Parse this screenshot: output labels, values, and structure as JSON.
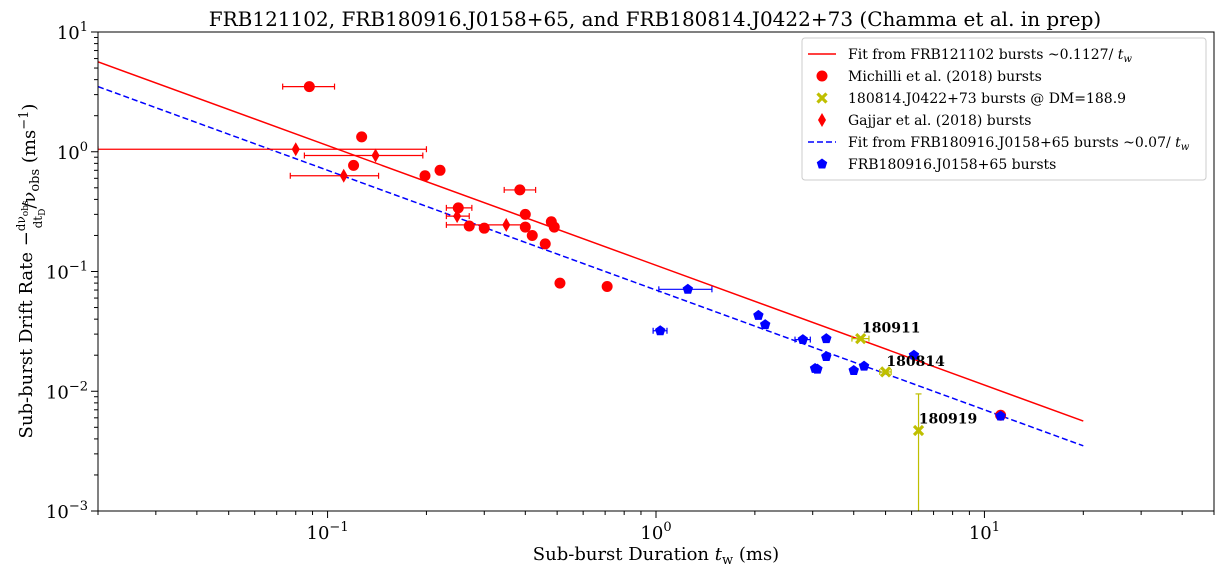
{
  "chart_data": {
    "type": "scatter",
    "title": "FRB121102, FRB180916.J0158+65, and FRB180814.J0422+73 (Chamma et al. in prep)",
    "xlabel": "Sub-burst Duration t_w (ms)",
    "ylabel": "Sub-burst Drift Rate −(dν_obs/dt_D)/ν_obs (ms⁻¹)",
    "xscale": "log",
    "yscale": "log",
    "xlim": [
      0.02,
      50
    ],
    "ylim": [
      0.001,
      10
    ],
    "grid": false,
    "legend_position": "top-right",
    "x_ticks": [
      {
        "value": 0.1,
        "base": "10",
        "exp": "−1"
      },
      {
        "value": 1,
        "base": "10",
        "exp": "0"
      },
      {
        "value": 10,
        "base": "10",
        "exp": "1"
      }
    ],
    "y_ticks": [
      {
        "value": 0.001,
        "base": "10",
        "exp": "−3"
      },
      {
        "value": 0.01,
        "base": "10",
        "exp": "−2"
      },
      {
        "value": 0.1,
        "base": "10",
        "exp": "−1"
      },
      {
        "value": 1,
        "base": "10",
        "exp": "0"
      },
      {
        "value": 10,
        "base": "10",
        "exp": "1"
      }
    ],
    "series": [
      {
        "name": "Fit from FRB121102 bursts ~0.1127/ t_w",
        "kind": "line",
        "color": "#ff0000",
        "dash": "solid",
        "x": [
          0.02,
          20
        ],
        "y": [
          5.635,
          0.005635
        ]
      },
      {
        "name": "Michilli et al. (2018) bursts",
        "kind": "points",
        "marker": "circle",
        "color": "#ff0000",
        "points": [
          {
            "x": 0.088,
            "y": 3.5,
            "xerr": [
              0.073,
              0.105
            ]
          },
          {
            "x": 0.127,
            "y": 1.33
          },
          {
            "x": 0.12,
            "y": 0.77
          },
          {
            "x": 0.198,
            "y": 0.63
          },
          {
            "x": 0.22,
            "y": 0.7
          },
          {
            "x": 0.25,
            "y": 0.34,
            "xerr": [
              0.23,
              0.275
            ]
          },
          {
            "x": 0.27,
            "y": 0.24
          },
          {
            "x": 0.3,
            "y": 0.23
          },
          {
            "x": 0.385,
            "y": 0.48,
            "xerr": [
              0.345,
              0.43
            ]
          },
          {
            "x": 0.4,
            "y": 0.3
          },
          {
            "x": 0.4,
            "y": 0.235
          },
          {
            "x": 0.42,
            "y": 0.2
          },
          {
            "x": 0.46,
            "y": 0.17
          },
          {
            "x": 0.48,
            "y": 0.26
          },
          {
            "x": 0.49,
            "y": 0.235
          },
          {
            "x": 0.51,
            "y": 0.08
          },
          {
            "x": 0.71,
            "y": 0.075
          },
          {
            "x": 11.2,
            "y": 0.0063
          }
        ]
      },
      {
        "name": "180814.J0422+73 bursts @ DM=188.9",
        "kind": "points",
        "marker": "x",
        "color": "#bfbf00",
        "points": [
          {
            "x": 4.2,
            "y": 0.0275,
            "xerr": [
              3.95,
              4.45
            ]
          },
          {
            "x": 5.0,
            "y": 0.0145,
            "xerr": [
              4.8,
              5.2
            ]
          },
          {
            "x": 6.3,
            "y": 0.0047,
            "yerr": [
              0.0005,
              0.0095
            ]
          }
        ]
      },
      {
        "name": "Gajjar et al. (2018) bursts",
        "kind": "points",
        "marker": "diamond",
        "color": "#ff0000",
        "points": [
          {
            "x": 0.08,
            "y": 1.05,
            "xerr": [
              0.02,
              0.2
            ]
          },
          {
            "x": 0.14,
            "y": 0.93,
            "xerr": [
              0.085,
              0.195
            ]
          },
          {
            "x": 0.112,
            "y": 0.63,
            "xerr": [
              0.077,
              0.143
            ]
          },
          {
            "x": 0.248,
            "y": 0.29,
            "xerr": [
              0.23,
              0.27
            ]
          },
          {
            "x": 0.35,
            "y": 0.245,
            "xerr": [
              0.23,
              0.4
            ]
          }
        ]
      },
      {
        "name": "Fit from FRB180916.J0158+65 bursts ~0.07/ t_w",
        "kind": "line",
        "color": "#0000ff",
        "dash": "dashed",
        "x": [
          0.02,
          20
        ],
        "y": [
          3.5,
          0.0035
        ]
      },
      {
        "name": "FRB180916.J0158+65 bursts",
        "kind": "points",
        "marker": "pentagon",
        "color": "#0000ff",
        "points": [
          {
            "x": 1.03,
            "y": 0.032,
            "xerr": [
              0.98,
              1.08
            ]
          },
          {
            "x": 1.25,
            "y": 0.071,
            "xerr": [
              1.02,
              1.48
            ]
          },
          {
            "x": 2.05,
            "y": 0.043
          },
          {
            "x": 2.15,
            "y": 0.036
          },
          {
            "x": 2.8,
            "y": 0.027,
            "xerr": [
              2.65,
              2.95
            ]
          },
          {
            "x": 3.3,
            "y": 0.0275
          },
          {
            "x": 3.3,
            "y": 0.0195
          },
          {
            "x": 3.05,
            "y": 0.0155
          },
          {
            "x": 3.1,
            "y": 0.0153
          },
          {
            "x": 4.0,
            "y": 0.0149
          },
          {
            "x": 4.3,
            "y": 0.0162
          },
          {
            "x": 6.1,
            "y": 0.02
          },
          {
            "x": 11.2,
            "y": 0.0062
          }
        ]
      }
    ],
    "annotations": [
      {
        "text": "180911",
        "x": 4.3,
        "y": 0.0315
      },
      {
        "text": "180814",
        "x": 5.1,
        "y": 0.0165
      },
      {
        "text": "180919",
        "x": 6.4,
        "y": 0.0055
      }
    ],
    "legend": {
      "entries": [
        {
          "text": "Fit from FRB121102 bursts ~0.1127/ ",
          "italic_suffix": "t",
          "sub": "w",
          "swatch": "line-solid",
          "color": "#ff0000"
        },
        {
          "text": "Michilli et al. (2018) bursts",
          "swatch": "circle",
          "color": "#ff0000"
        },
        {
          "text": "180814.J0422+73 bursts @ DM=188.9",
          "swatch": "x",
          "color": "#bfbf00"
        },
        {
          "text": "Gajjar et al. (2018) bursts",
          "swatch": "diamond",
          "color": "#ff0000"
        },
        {
          "text": "Fit from FRB180916.J0158+65 bursts ~0.07/ ",
          "italic_suffix": "t",
          "sub": "w",
          "swatch": "line-dashed",
          "color": "#0000ff"
        },
        {
          "text": "FRB180916.J0158+65 bursts",
          "swatch": "pentagon",
          "color": "#0000ff"
        }
      ]
    },
    "axis_text": {
      "xlabel_main": "Sub-burst Duration ",
      "xlabel_var": "t",
      "xlabel_sub": "w",
      "xlabel_unit": " (ms)",
      "ylabel_main": "Sub-burst Drift Rate  −",
      "ylabel_frac_num": "dν",
      "ylabel_frac_num_sub": "obs",
      "ylabel_frac_den": "dt",
      "ylabel_frac_den_sub": "D",
      "ylabel_nu": "/ν",
      "ylabel_nu_sub": "obs",
      "ylabel_unit": " (ms",
      "ylabel_unit_sup": "−1",
      "ylabel_close": ")"
    }
  }
}
